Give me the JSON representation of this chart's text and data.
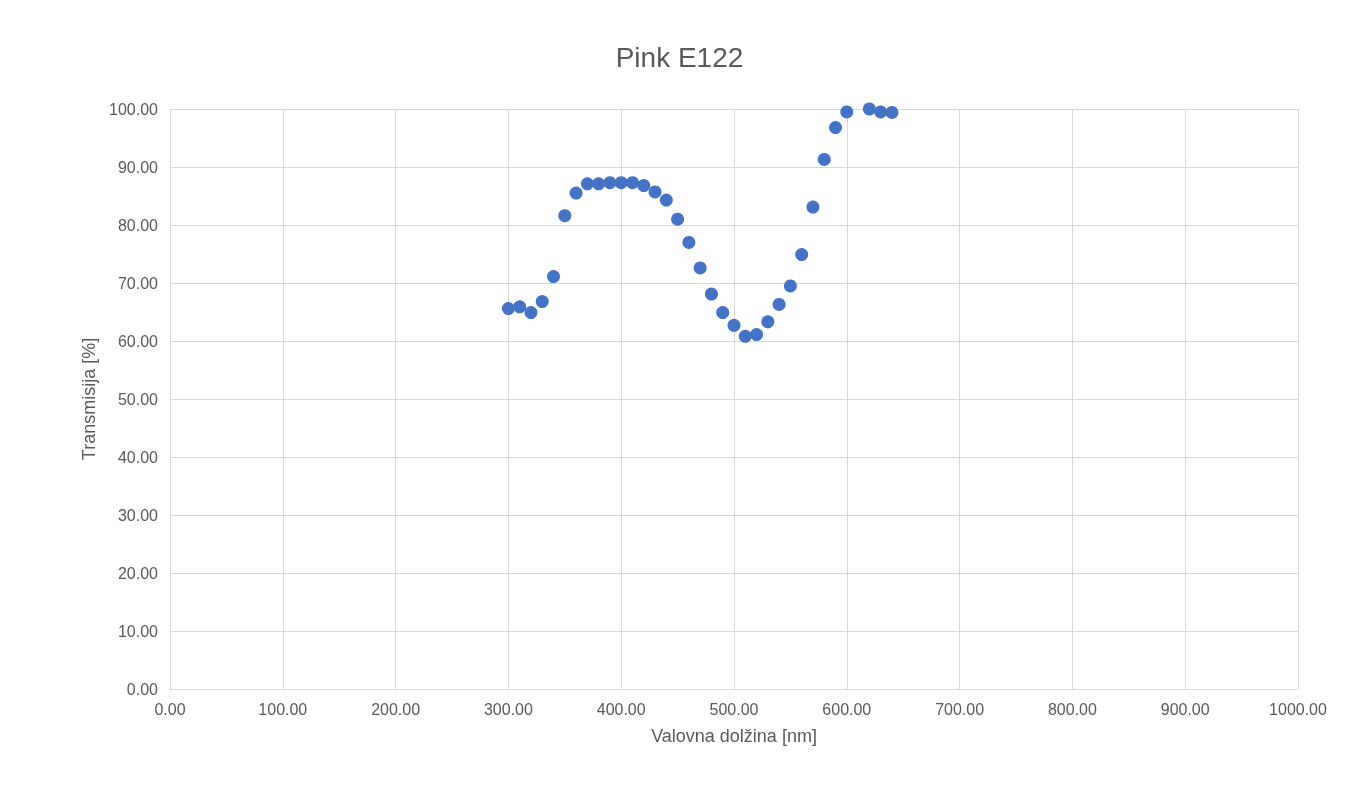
{
  "chart_data": {
    "type": "scatter",
    "title": "Pink E122",
    "xlabel": "Valovna dolžina [nm]",
    "ylabel": "Transmisija [%]",
    "x": [
      300,
      310,
      320,
      330,
      340,
      350,
      360,
      370,
      380,
      390,
      400,
      410,
      420,
      430,
      440,
      450,
      460,
      470,
      480,
      490,
      500,
      510,
      520,
      530,
      540,
      550,
      560,
      570,
      580,
      590,
      600,
      620,
      630,
      640
    ],
    "series": [
      {
        "color": "#4472c4",
        "values": [
          65.6,
          65.9,
          64.9,
          66.8,
          71.1,
          81.6,
          85.5,
          87.1,
          87.1,
          87.3,
          87.3,
          87.3,
          86.8,
          85.7,
          84.3,
          81.0,
          77.0,
          72.6,
          68.1,
          64.9,
          62.7,
          60.8,
          61.1,
          63.3,
          66.3,
          69.5,
          74.9,
          83.1,
          91.3,
          96.8,
          99.5,
          100.0,
          99.5,
          99.4
        ]
      }
    ],
    "xlim": [
      0,
      1000
    ],
    "xticks": [
      {
        "value": 0,
        "label": "0.00"
      },
      {
        "value": 100,
        "label": "100.00"
      },
      {
        "value": 200,
        "label": "200.00"
      },
      {
        "value": 300,
        "label": "300.00"
      },
      {
        "value": 400,
        "label": "400.00"
      },
      {
        "value": 500,
        "label": "500.00"
      },
      {
        "value": 600,
        "label": "600.00"
      },
      {
        "value": 700,
        "label": "700.00"
      },
      {
        "value": 800,
        "label": "800.00"
      },
      {
        "value": 900,
        "label": "900.00"
      },
      {
        "value": 1000,
        "label": "1000.00"
      }
    ],
    "ylim": [
      0,
      100
    ],
    "yticks": [
      {
        "value": 0,
        "label": "0.00"
      },
      {
        "value": 10,
        "label": "10.00"
      },
      {
        "value": 20,
        "label": "20.00"
      },
      {
        "value": 30,
        "label": "30.00"
      },
      {
        "value": 40,
        "label": "40.00"
      },
      {
        "value": 50,
        "label": "50.00"
      },
      {
        "value": 60,
        "label": "60.00"
      },
      {
        "value": 70,
        "label": "70.00"
      },
      {
        "value": 80,
        "label": "80.00"
      },
      {
        "value": 90,
        "label": "90.00"
      },
      {
        "value": 100,
        "label": "100.00"
      }
    ],
    "grid": true,
    "marker": "circle"
  }
}
